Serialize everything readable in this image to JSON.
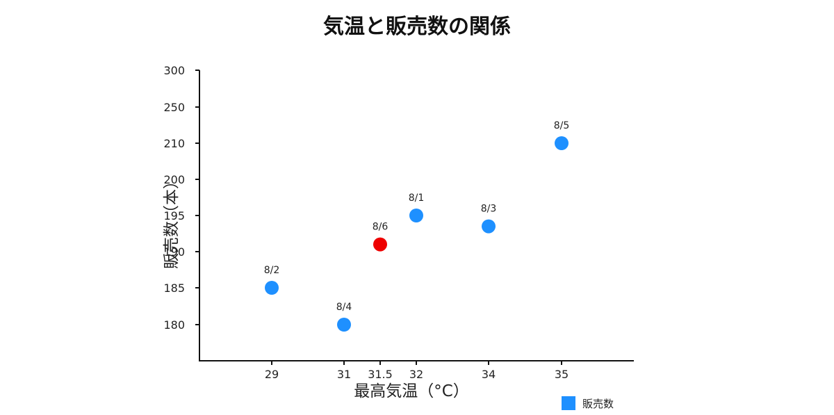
{
  "chart_data": {
    "type": "scatter",
    "title": "気温と販売数の関係",
    "xlabel": "最高気温（°C）",
    "ylabel": "販売数（本）",
    "x_ticks": [
      29,
      31,
      31.5,
      32,
      34,
      35
    ],
    "y_ticks": [
      180,
      185,
      190,
      195,
      200,
      210,
      250,
      300
    ],
    "legend": {
      "label": "販売数",
      "position": "bottom-right"
    },
    "series": [
      {
        "name": "販売数",
        "color": "#1E90FF",
        "points": [
          {
            "label": "8/1",
            "x": 32,
            "y": 195
          },
          {
            "label": "8/2",
            "x": 29,
            "y": 185
          },
          {
            "label": "8/3",
            "x": 34,
            "y": 193.5
          },
          {
            "label": "8/4",
            "x": 31,
            "y": 180
          },
          {
            "label": "8/5",
            "x": 35,
            "y": 210
          },
          {
            "label": "8/6",
            "x": 31.5,
            "y": 191,
            "color": "#EE0000"
          }
        ]
      }
    ],
    "grid": false
  }
}
